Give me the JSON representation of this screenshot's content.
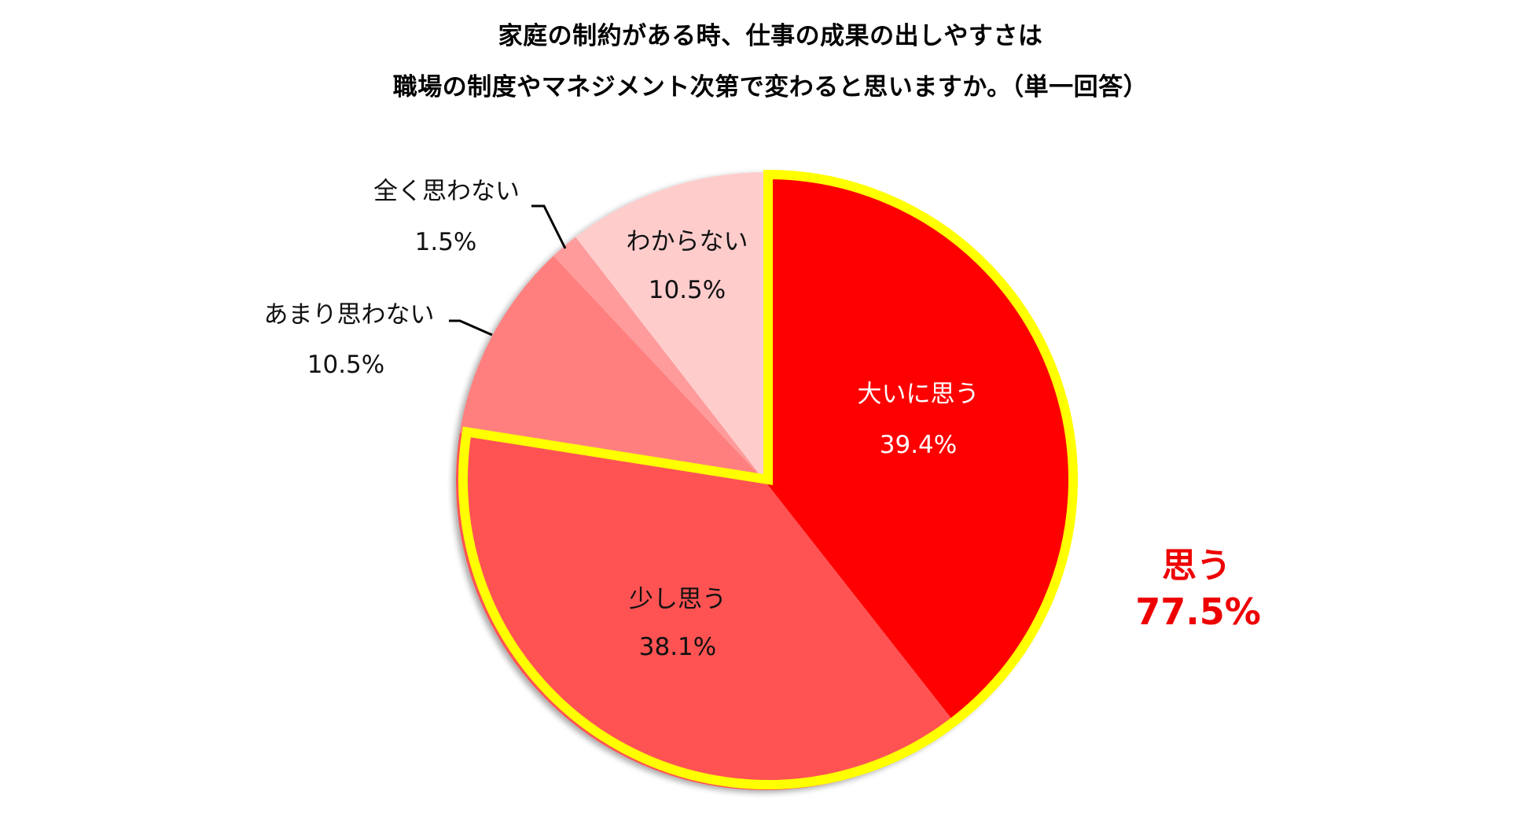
{
  "title": {
    "line1": "家庭の制約がある時、仕事の成果の出しやすさは",
    "line2": "職場の制度やマネジメント次第で変わると思いますか。（単一回答）"
  },
  "summary": {
    "label": "思う",
    "value": "77.5%",
    "color": "#ee0000"
  },
  "chart_data": {
    "type": "pie",
    "title": "家庭の制約がある時、仕事の成果の出しやすさは職場の制度やマネジメント次第で変わると思いますか。（単一回答）",
    "start_angle": "12 o'clock, clockwise",
    "categories": [
      "大いに思う",
      "少し思う",
      "あまり思わない",
      "全く思わない",
      "わからない"
    ],
    "values": [
      39.4,
      38.1,
      10.5,
      1.5,
      10.5
    ],
    "unit": "%",
    "colors": [
      "#ff0000",
      "#ff5252",
      "#ff7f7f",
      "#ff9b9b",
      "#ffcccc"
    ],
    "labels": [
      {
        "name": "大いに思う",
        "value": "39.4%"
      },
      {
        "name": "少し思う",
        "value": "38.1%"
      },
      {
        "name": "あまり思わない",
        "value": "10.5%"
      },
      {
        "name": "全く思わない",
        "value": "1.5%"
      },
      {
        "name": "わからない",
        "value": "10.5%"
      }
    ],
    "highlight": {
      "members": [
        "大いに思う",
        "少し思う"
      ],
      "outline_color": "#ffff00",
      "label": "思う",
      "total": "77.5%"
    },
    "legend": "none (data labels on/near slices)"
  }
}
